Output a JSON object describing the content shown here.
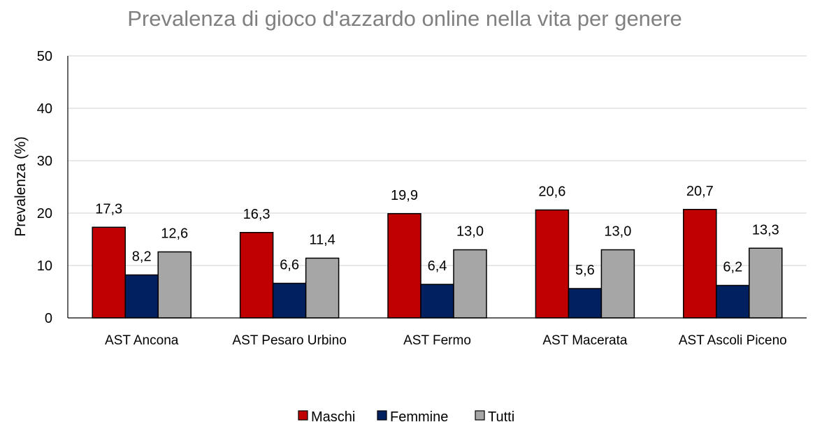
{
  "chart_data": {
    "type": "bar",
    "title": "Prevalenza di gioco d'azzardo online nella vita per genere",
    "xlabel": "",
    "ylabel": "Prevalenza (%)",
    "ylim": [
      0,
      50
    ],
    "yticks": [
      0,
      10,
      20,
      30,
      40,
      50
    ],
    "grid": true,
    "legend_position": "bottom",
    "categories": [
      "AST Ancona",
      "AST Pesaro Urbino",
      "AST Fermo",
      "AST Macerata",
      "AST Ascoli Piceno"
    ],
    "series": [
      {
        "name": "Maschi",
        "color": "#c00000",
        "values": [
          17.3,
          16.3,
          19.9,
          20.6,
          20.7
        ],
        "labels": [
          "17,3",
          "16,3",
          "19,9",
          "20,6",
          "20,7"
        ]
      },
      {
        "name": "Femmine",
        "color": "#002060",
        "values": [
          8.2,
          6.6,
          6.4,
          5.6,
          6.2
        ],
        "labels": [
          "8,2",
          "6,6",
          "6,4",
          "5,6",
          "6,2"
        ]
      },
      {
        "name": "Tutti",
        "color": "#a6a6a6",
        "values": [
          12.6,
          11.4,
          13.0,
          13.0,
          13.3
        ],
        "labels": [
          "12,6",
          "11,4",
          "13,0",
          "13,0",
          "13,3"
        ]
      }
    ]
  }
}
